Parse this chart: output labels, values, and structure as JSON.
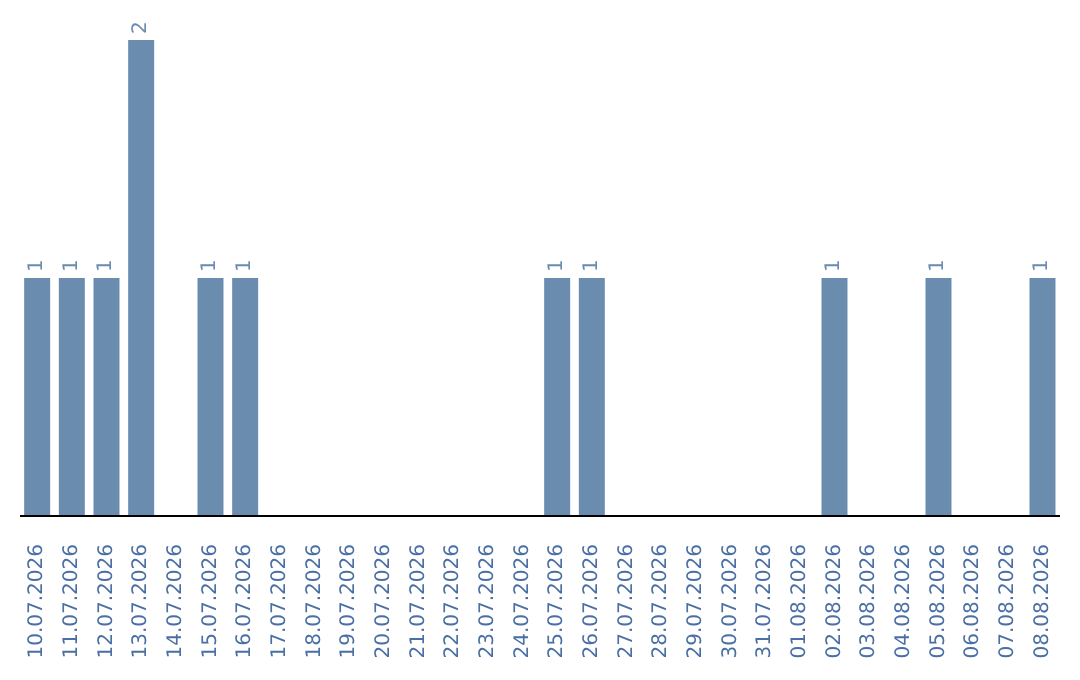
{
  "chart_data": {
    "type": "bar",
    "categories": [
      "10.07.2026",
      "11.07.2026",
      "12.07.2026",
      "13.07.2026",
      "14.07.2026",
      "15.07.2026",
      "16.07.2026",
      "17.07.2026",
      "18.07.2026",
      "19.07.2026",
      "20.07.2026",
      "21.07.2026",
      "22.07.2026",
      "23.07.2026",
      "24.07.2026",
      "25.07.2026",
      "26.07.2026",
      "27.07.2026",
      "28.07.2026",
      "29.07.2026",
      "30.07.2026",
      "31.07.2026",
      "01.08.2026",
      "02.08.2026",
      "03.08.2026",
      "04.08.2026",
      "05.08.2026",
      "06.08.2026",
      "07.08.2026",
      "08.08.2026"
    ],
    "values": [
      1,
      1,
      1,
      2,
      0,
      1,
      1,
      0,
      0,
      0,
      0,
      0,
      0,
      0,
      0,
      1,
      1,
      0,
      0,
      0,
      0,
      0,
      0,
      1,
      0,
      0,
      1,
      0,
      0,
      1
    ],
    "value_labels": [
      "1",
      "1",
      "1",
      "2",
      null,
      "1",
      "1",
      null,
      null,
      null,
      null,
      null,
      null,
      null,
      null,
      "1",
      "1",
      null,
      null,
      null,
      null,
      null,
      null,
      "1",
      null,
      null,
      "1",
      null,
      null,
      "1"
    ],
    "color": "#6a8caf",
    "grid": false,
    "legend": false
  }
}
